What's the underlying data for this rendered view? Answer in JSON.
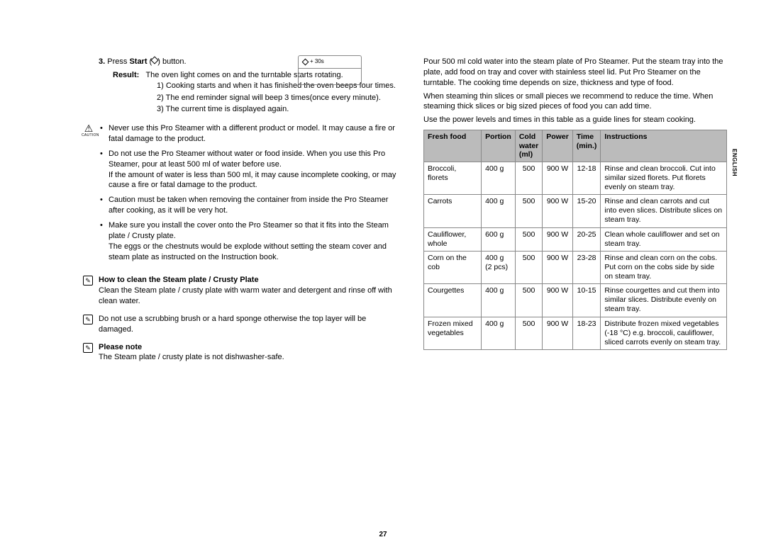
{
  "side_tab": "ENGLISH",
  "page_num": "27",
  "diagram_label": "+ 30s",
  "left": {
    "step": {
      "num": "3.",
      "text_pre": "Press ",
      "bold": "Start",
      "text_post": " (",
      "text_end": ") button."
    },
    "result_label": "Result:",
    "result_line": "The oven light comes on and the turntable starts rotating.",
    "numbered": [
      "1)  Cooking starts and when it has finished the oven beeps four times.",
      "2)  The end reminder signal will beep 3 times(once every minute).",
      "3)  The current time is displayed again."
    ],
    "caution_label": "CAUTION",
    "cautions": [
      "Never use this Pro Steamer with a different product or model. It may cause a fire or fatal damage to the product.",
      "Do not use the Pro Steamer without water or food inside. When you use this Pro Steamer, pour at least 500 ml of water before use.\nIf the amount of water is less than 500 ml, it may cause incomplete cooking, or may cause a fire or fatal damage to the product.",
      "Caution must be taken when removing the container from inside the Pro Steamer after cooking, as it will be very hot.",
      "Make sure you install the cover onto the Pro Steamer so that it fits into the Steam plate / Crusty plate.\nThe eggs or the chestnuts would be explode without setting the steam cover and steam plate as instructed on the Instruction book."
    ],
    "note1_title": "How to clean the Steam plate / Crusty Plate",
    "note1_body": "Clean the Steam plate / crusty plate with warm water and detergent and rinse off with clean water.",
    "note2_body": "Do not use a scrubbing brush or a hard sponge otherwise the top layer will be damaged.",
    "note3_title": "Please note",
    "note3_body": "The Steam plate / crusty plate is not dishwasher-safe."
  },
  "right": {
    "intro": [
      "Pour 500 ml cold water into the steam plate of Pro Steamer. Put the steam tray into the plate, add food on tray and cover with stainless steel lid. Put Pro Steamer on the turntable. The cooking time depends on size, thickness and type of food.",
      "When steaming thin slices or small pieces we recommend to reduce the time. When steaming thick slices or big sized pieces of food you can add time.",
      "Use the power levels and times in this table as a guide lines for steam cooking."
    ],
    "headers": [
      "Fresh food",
      "Portion",
      "Cold water (ml)",
      "Power",
      "Time (min.)",
      "Instructions"
    ],
    "rows": [
      {
        "food": "Broccoli, florets",
        "portion": "400 g",
        "water": "500",
        "power": "900 W",
        "time": "12-18",
        "instr": "Rinse and clean broccoli. Cut into similar sized florets. Put florets evenly on steam tray."
      },
      {
        "food": "Carrots",
        "portion": "400 g",
        "water": "500",
        "power": "900 W",
        "time": "15-20",
        "instr": "Rinse and clean carrots and cut into even slices. Distribute slices on steam tray."
      },
      {
        "food": "Cauliflower, whole",
        "portion": "600 g",
        "water": "500",
        "power": "900 W",
        "time": "20-25",
        "instr": "Clean whole cauliflower and set on steam tray."
      },
      {
        "food": "Corn on the cob",
        "portion": "400 g\n(2 pcs)",
        "water": "500",
        "power": "900 W",
        "time": "23-28",
        "instr": "Rinse and clean corn on the cobs. Put corn on the cobs side by side on steam tray."
      },
      {
        "food": "Courgettes",
        "portion": "400 g",
        "water": "500",
        "power": "900 W",
        "time": "10-15",
        "instr": "Rinse courgettes and cut them into similar slices. Distribute evenly on steam tray."
      },
      {
        "food": "Frozen mixed vegetables",
        "portion": "400 g",
        "water": "500",
        "power": "900 W",
        "time": "18-23",
        "instr": "Distribute frozen mixed vegetables (-18 °C) e.g. broccoli, cauliflower, sliced carrots evenly on steam tray."
      }
    ]
  }
}
